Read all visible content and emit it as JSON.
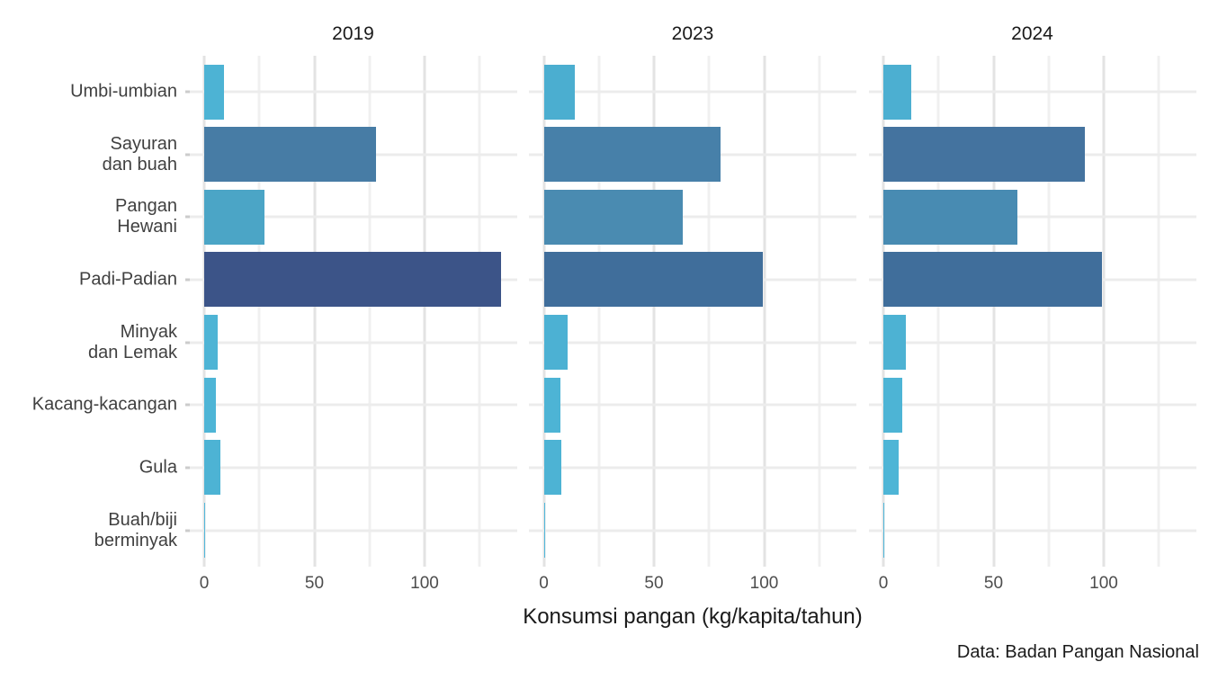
{
  "chart": {
    "facet_titles": [
      "2019",
      "2023",
      "2024"
    ],
    "xlabel": "Konsumsi pangan (kg/kapita/tahun)",
    "caption": "Data: Badan Pangan Nasional"
  },
  "chart_data": {
    "type": "bar",
    "orientation": "horizontal",
    "title": "",
    "xlabel": "Konsumsi pangan (kg/kapita/tahun)",
    "ylabel": "",
    "caption": "Data: Badan Pangan Nasional",
    "facets": [
      "2019",
      "2023",
      "2024"
    ],
    "categories": [
      "Umbi-umbian",
      "Sayuran\ndan buah",
      "Pangan\nHewani",
      "Padi-Padian",
      "Minyak\ndan Lemak",
      "Kacang-kacangan",
      "Gula",
      "Buah/biji\nberminyak"
    ],
    "x_breaks": [
      0,
      50,
      100
    ],
    "x_minor_breaks": [
      25,
      75,
      125
    ],
    "xlim": [
      0,
      141.75
    ],
    "grid": true,
    "legend": "none",
    "series": [
      {
        "name": "2019",
        "values": [
          9,
          78,
          27.5,
          134.5,
          6,
          5.5,
          7.5,
          0.5
        ],
        "colors": [
          "#4DB3D4",
          "#477CA5",
          "#4BA5C6",
          "#3C5488",
          "#4EB4D5",
          "#4EB5D6",
          "#4DB3D4",
          "#51B8DA"
        ]
      },
      {
        "name": "2023",
        "values": [
          14,
          80,
          63,
          99.5,
          11,
          7.5,
          8,
          0.5
        ],
        "colors": [
          "#4BAED0",
          "#4780A9",
          "#4A8BB1",
          "#406E9B",
          "#4CB1D3",
          "#4DB4D5",
          "#4DB3D4",
          "#51B8DA"
        ]
      },
      {
        "name": "2024",
        "values": [
          12.5,
          91.5,
          61,
          99,
          10,
          8.5,
          7,
          0.5
        ],
        "colors": [
          "#4CAFD1",
          "#44739F",
          "#488BB2",
          "#406E9B",
          "#4DB2D3",
          "#4DB4D5",
          "#4EB5D6",
          "#51B8DA"
        ]
      }
    ],
    "fill_scale": {
      "low_value_color": "#51B8DA",
      "high_value_color": "#3C5488"
    }
  }
}
